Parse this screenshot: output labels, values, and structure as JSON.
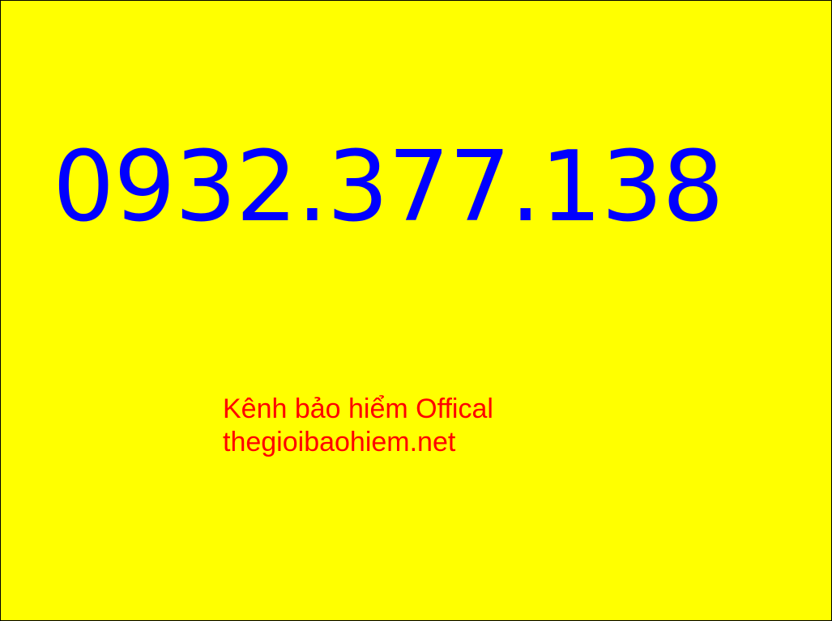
{
  "colors": {
    "background": "#FFFF00",
    "border": "#000000",
    "phone": "#0000FF",
    "caption": "#FF0000"
  },
  "phone_number": "0932.377.138",
  "caption": {
    "line1": "Kênh bảo hiểm Offical",
    "line2": "thegioibaohiem.net"
  }
}
